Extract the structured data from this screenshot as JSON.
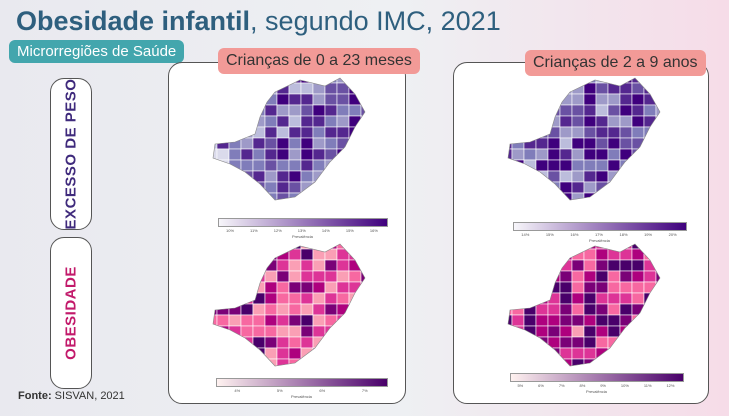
{
  "title": {
    "bold": "Obesidade infantil",
    "rest": ", segundo IMC, 2021"
  },
  "badge": "Microrregiões de Saúde",
  "rows": {
    "excesso": "EXCESSO DE PESO",
    "obesidade": "OBESIDADE"
  },
  "panels": [
    {
      "title": "Crianças de 0 a 23 meses"
    },
    {
      "title": "Crianças de 2 a 9 anos"
    }
  ],
  "legend_label": "Prevalência",
  "colorbars": [
    {
      "ticks": [
        "10%",
        "11%",
        "12%",
        "13%",
        "14%",
        "15%",
        "16%"
      ],
      "colors": [
        "#f7f6fa",
        "#3f007d"
      ]
    },
    {
      "ticks": [
        "14%",
        "15%",
        "16%",
        "17%",
        "18%",
        "19%",
        "20%"
      ],
      "colors": [
        "#f7f6fa",
        "#3f007d"
      ]
    },
    {
      "ticks": [
        "4%",
        "5%",
        "6%",
        "7%"
      ],
      "colors": [
        "#fff2f0",
        "#49006a"
      ]
    },
    {
      "ticks": [
        "5%",
        "6%",
        "7%",
        "8%",
        "9%",
        "10%",
        "11%",
        "12%"
      ],
      "colors": [
        "#fff2f0",
        "#49006a"
      ]
    }
  ],
  "source": {
    "label": "Fonte:",
    "value": "SISVAN, 2021"
  }
}
